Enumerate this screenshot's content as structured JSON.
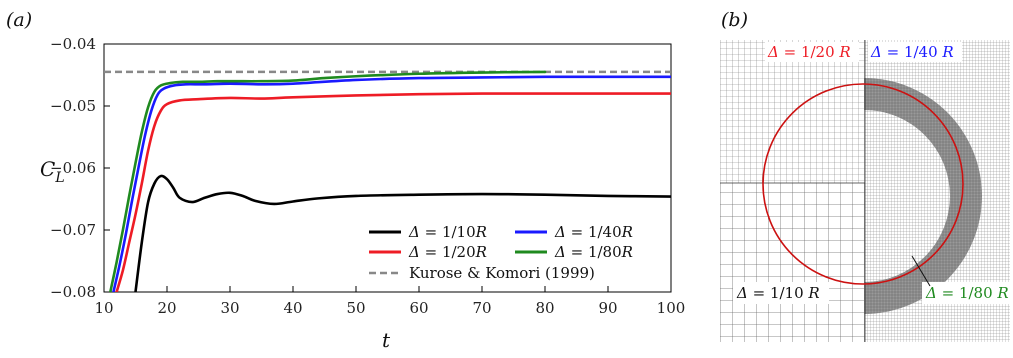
{
  "chart_data": [
    {
      "panel_label": "(a)",
      "type": "line",
      "xlabel": "t",
      "ylabel_main": "C",
      "ylabel_sub": "L",
      "xlim": [
        10,
        100
      ],
      "ylim": [
        -0.08,
        -0.04
      ],
      "xticks": [
        10,
        20,
        30,
        40,
        50,
        60,
        70,
        80,
        90,
        100
      ],
      "yticks": [
        -0.04,
        -0.05,
        -0.06,
        -0.07,
        -0.08
      ],
      "ytick_labels": [
        "−0.04",
        "−0.05",
        "−0.06",
        "−0.07",
        "−0.08"
      ],
      "grid": false,
      "legend_placement": "lower-right",
      "series": [
        {
          "name": "Δ = 1/10R",
          "delta": "Δ",
          "label_rest": "= 1/10",
          "label_r": "R",
          "color": "#000000",
          "x": [
            15.0,
            16.0,
            17.0,
            18.0,
            19.0,
            20.0,
            21.0,
            22.0,
            24.0,
            26.0,
            28.0,
            30.0,
            32.0,
            34.0,
            37.0,
            40.0,
            44.0,
            50.0,
            60.0,
            70.0,
            80.0,
            90.0,
            100.0
          ],
          "y": [
            -0.08,
            -0.072,
            -0.0655,
            -0.0625,
            -0.0613,
            -0.0618,
            -0.0632,
            -0.0648,
            -0.0655,
            -0.0648,
            -0.0642,
            -0.064,
            -0.0645,
            -0.0653,
            -0.0658,
            -0.0654,
            -0.0649,
            -0.0645,
            -0.0643,
            -0.0642,
            -0.0643,
            -0.0645,
            -0.0646
          ]
        },
        {
          "name": "Δ = 1/20R",
          "delta": "Δ",
          "label_rest": "= 1/20",
          "label_r": "R",
          "color": "#ee1c25",
          "x": [
            12.0,
            13.0,
            14.0,
            15.0,
            16.0,
            17.0,
            18.0,
            19.0,
            20.0,
            22.0,
            25.0,
            30.0,
            35.0,
            40.0,
            50.0,
            60.0,
            70.0,
            80.0,
            90.0,
            100.0
          ],
          "y": [
            -0.08,
            -0.0765,
            -0.072,
            -0.0675,
            -0.0625,
            -0.0572,
            -0.0532,
            -0.0508,
            -0.0497,
            -0.0491,
            -0.0489,
            -0.0487,
            -0.0488,
            -0.0486,
            -0.0483,
            -0.0481,
            -0.048,
            -0.048,
            -0.048,
            -0.048
          ]
        },
        {
          "name": "Δ = 1/40R",
          "delta": "Δ",
          "label_rest": "= 1/40",
          "label_r": "R",
          "color": "#1a1aff",
          "x": [
            11.5,
            12.5,
            13.5,
            14.5,
            15.5,
            16.5,
            17.5,
            18.5,
            19.5,
            21.0,
            23.0,
            26.0,
            30.0,
            35.0,
            40.0,
            50.0,
            60.0,
            70.0,
            80.0,
            90.0,
            100.0
          ],
          "y": [
            -0.08,
            -0.0755,
            -0.0705,
            -0.065,
            -0.0598,
            -0.0548,
            -0.0508,
            -0.0482,
            -0.0472,
            -0.0467,
            -0.0465,
            -0.0465,
            -0.0464,
            -0.0465,
            -0.0464,
            -0.0458,
            -0.0455,
            -0.0454,
            -0.0453,
            -0.0453,
            -0.0453
          ]
        },
        {
          "name": "Δ = 1/80R",
          "delta": "Δ",
          "label_rest": "= 1/80",
          "label_r": "R",
          "color": "#1f8a1f",
          "x": [
            11.0,
            12.0,
            13.0,
            14.0,
            15.0,
            16.0,
            17.0,
            18.0,
            19.0,
            20.5,
            22.5,
            25.0,
            28.0,
            31.0,
            35.0,
            40.0,
            45.0,
            50.0,
            60.0,
            70.0,
            80.0
          ],
          "y": [
            -0.08,
            -0.0752,
            -0.07,
            -0.0645,
            -0.0592,
            -0.0542,
            -0.0502,
            -0.0477,
            -0.0467,
            -0.0463,
            -0.0461,
            -0.0461,
            -0.046,
            -0.046,
            -0.046,
            -0.0459,
            -0.0455,
            -0.0452,
            -0.0448,
            -0.0446,
            -0.0445
          ]
        }
      ],
      "reference": {
        "name": "Kurose & Komori (1999)",
        "y": -0.0445,
        "color": "#888888"
      }
    },
    {
      "panel_label": "(b)",
      "type": "other",
      "colors": {
        "red": "#ee1c25",
        "blue": "#1a1aff",
        "green": "#1f8a1f",
        "black": "#111111"
      },
      "mesh_labels": [
        {
          "id": "d20",
          "delta": "Δ",
          "text": " = 1/20 ",
          "r": "R",
          "color": "#ee1c25"
        },
        {
          "id": "d40",
          "delta": "Δ",
          "text": " = 1/40 ",
          "r": "R",
          "color": "#1a1aff"
        },
        {
          "id": "d10",
          "delta": "Δ",
          "text": " = 1/10 ",
          "r": "R",
          "color": "#111111"
        },
        {
          "id": "d80",
          "delta": "Δ",
          "text": " = 1/80 ",
          "r": "R",
          "color": "#1f8a1f"
        }
      ]
    }
  ]
}
